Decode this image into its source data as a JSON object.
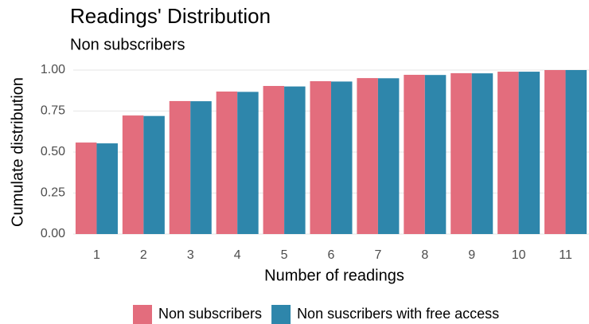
{
  "chart_data": {
    "type": "bar",
    "title": "Readings' Distribution",
    "subtitle": "Non subscribers",
    "x_label": "Number of readings",
    "y_label": "Cumulate distribution",
    "categories": [
      "1",
      "2",
      "3",
      "4",
      "5",
      "6",
      "7",
      "8",
      "9",
      "10",
      "11"
    ],
    "series": [
      {
        "name": "Non subscribers",
        "color": "#e36d7d",
        "values": [
          0.558,
          0.723,
          0.811,
          0.869,
          0.903,
          0.932,
          0.951,
          0.971,
          0.981,
          0.99,
          1.0
        ]
      },
      {
        "name": "Non suscribers with free access",
        "color": "#2e86ab",
        "values": [
          0.553,
          0.72,
          0.81,
          0.867,
          0.9,
          0.93,
          0.95,
          0.97,
          0.98,
          0.99,
          1.0
        ]
      }
    ],
    "ylim": [
      0,
      1.0
    ],
    "yticks": [
      {
        "value": 0,
        "label": "0.00"
      },
      {
        "value": 0.25,
        "label": "0.25"
      },
      {
        "value": 0.5,
        "label": "0.50"
      },
      {
        "value": 0.75,
        "label": "0.75"
      },
      {
        "value": 1.0,
        "label": "1.00"
      }
    ],
    "grid": true,
    "legend": "bottom"
  }
}
